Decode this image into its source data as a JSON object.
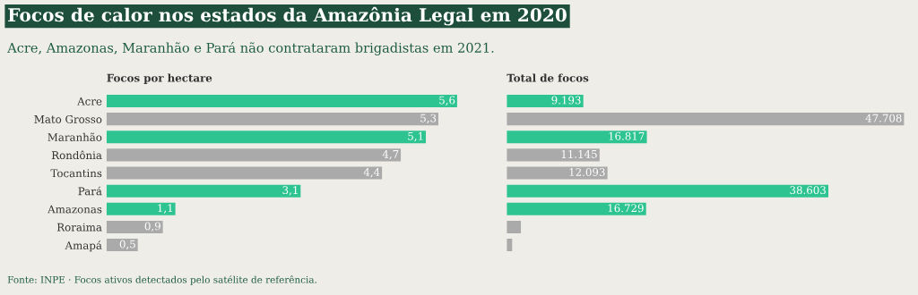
{
  "chart_data": [
    {
      "type": "bar",
      "orientation": "horizontal",
      "title": "Focos de calor nos estados da Amazônia Legal em 2020",
      "subtitle": "Acre, Amazonas, Maranhão e Pará não contrataram brigadistas em 2021.",
      "xlabel": "Focos por hectare",
      "annotations": [
        "Fonte: INPE · Focos ativos detectados pelo satélite de referência."
      ],
      "categories": [
        "Acre",
        "Mato Grosso",
        "Maranhão",
        "Rondônia",
        "Tocantins",
        "Pará",
        "Amazonas",
        "Roraima",
        "Amapá"
      ],
      "values": [
        5.6,
        5.3,
        5.1,
        4.7,
        4.4,
        3.1,
        1.1,
        0.9,
        0.5
      ],
      "value_labels": [
        "5,6",
        "5,3",
        "5,1",
        "4,7",
        "4,4",
        "3,1",
        "1,1",
        "0,9",
        "0,5"
      ],
      "colors": [
        "#2ec492",
        "#aaaaaa",
        "#2ec492",
        "#aaaaaa",
        "#aaaaaa",
        "#2ec492",
        "#2ec492",
        "#aaaaaa",
        "#aaaaaa"
      ],
      "tick_labels": "y",
      "grid": false
    },
    {
      "type": "bar",
      "orientation": "horizontal",
      "xlabel": "Total de focos",
      "categories": [
        null,
        null,
        null,
        null,
        null,
        null,
        null,
        null,
        null
      ],
      "values": [
        9193,
        47708,
        16817,
        11145,
        12093,
        38603,
        16729,
        1700,
        650
      ],
      "value_labels": [
        "9.193",
        "47.708",
        "16.817",
        "11.145",
        "12.093",
        "38.603",
        "16.729",
        null,
        null
      ],
      "colors": [
        "#2ec492",
        "#aaaaaa",
        "#2ec492",
        "#aaaaaa",
        "#aaaaaa",
        "#2ec492",
        "#2ec492",
        "#aaaaaa",
        "#aaaaaa"
      ],
      "tick_labels": false,
      "grid": false
    }
  ]
}
